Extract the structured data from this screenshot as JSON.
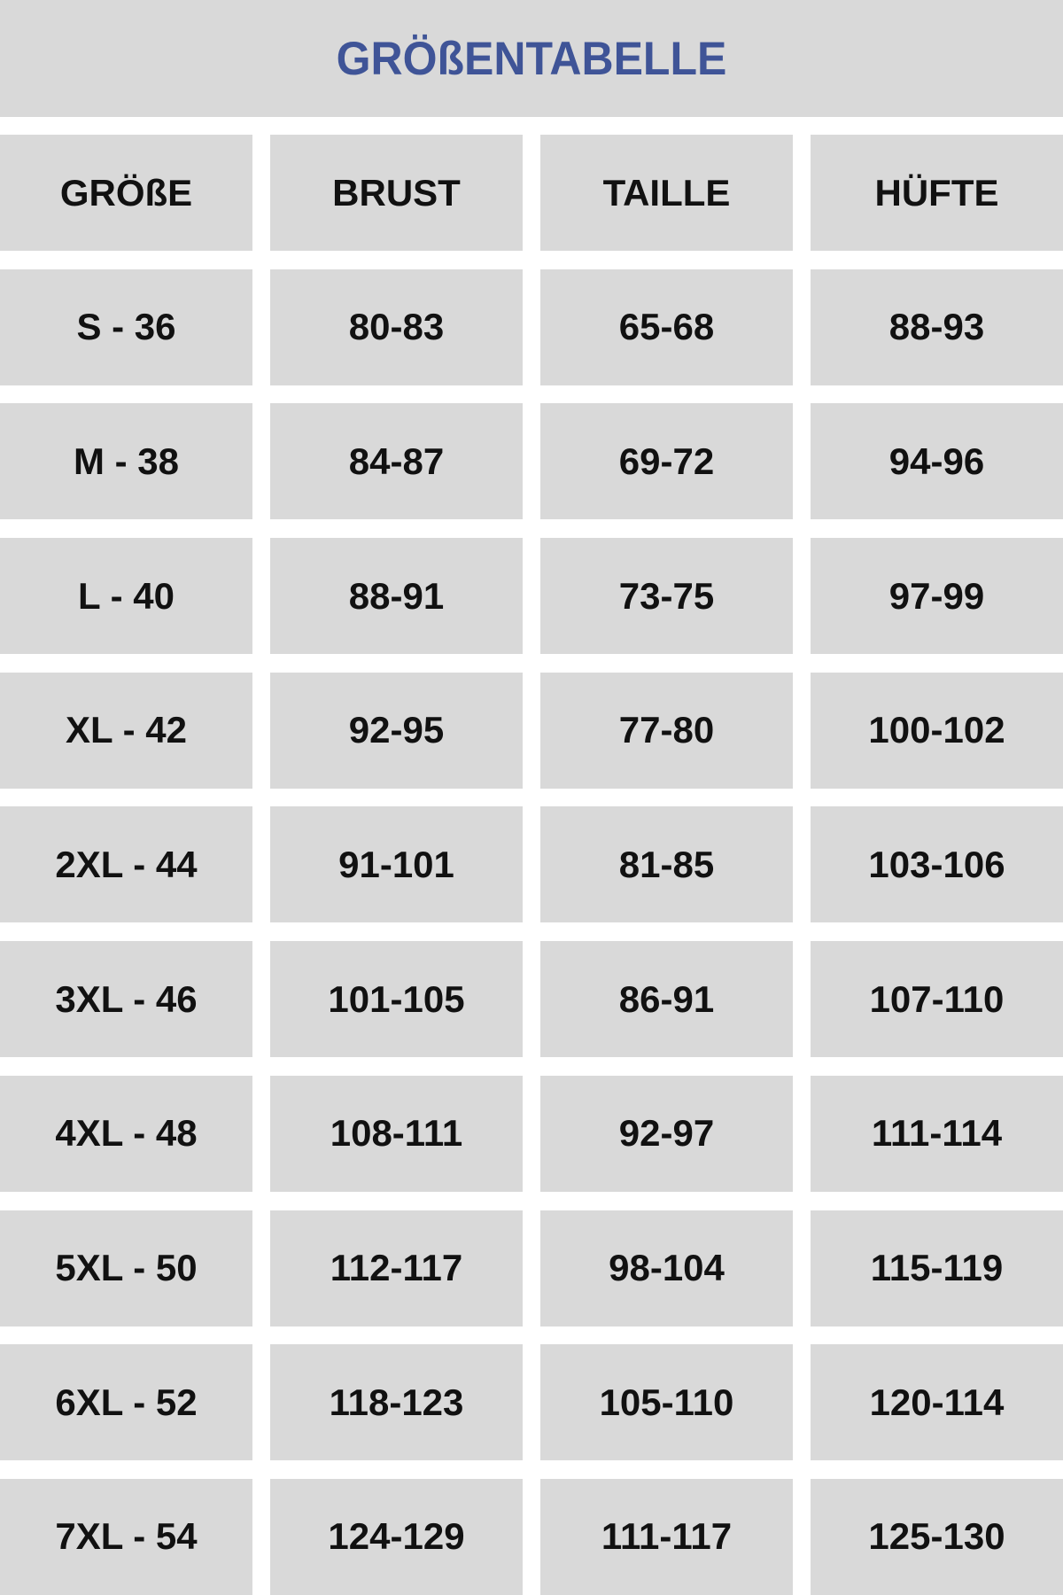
{
  "title": "GRÖßENTABELLE",
  "colors": {
    "title": "#3f5497",
    "cell_background": "#d9d9d9",
    "text": "#111111"
  },
  "headers": [
    "GRÖßE",
    "BRUST",
    "TAILLE",
    "HÜFTE"
  ],
  "rows": [
    [
      "S - 36",
      "80-83",
      "65-68",
      "88-93"
    ],
    [
      "M - 38",
      "84-87",
      "69-72",
      "94-96"
    ],
    [
      "L - 40",
      "88-91",
      "73-75",
      "97-99"
    ],
    [
      "XL - 42",
      "92-95",
      "77-80",
      "100-102"
    ],
    [
      "2XL - 44",
      "91-101",
      "81-85",
      "103-106"
    ],
    [
      "3XL - 46",
      "101-105",
      "86-91",
      "107-110"
    ],
    [
      "4XL - 48",
      "108-111",
      "92-97",
      "111-114"
    ],
    [
      "5XL - 50",
      "112-117",
      "98-104",
      "115-119"
    ],
    [
      "6XL - 52",
      "118-123",
      "105-110",
      "120-114"
    ],
    [
      "7XL - 54",
      "124-129",
      "111-117",
      "125-130"
    ]
  ]
}
